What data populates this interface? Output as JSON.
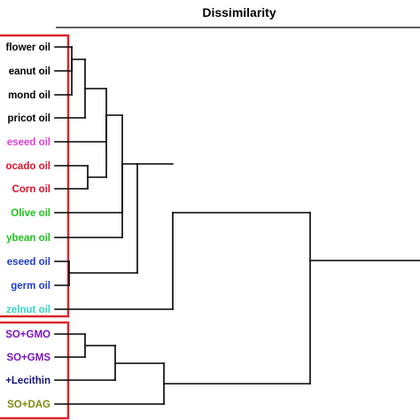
{
  "title": "Dissimilarity",
  "colors": {
    "box": "#d9262c",
    "branch": "#000000"
  },
  "leaves": [
    {
      "label": "flower oil",
      "color": "#000000"
    },
    {
      "label": "eanut oil",
      "color": "#000000"
    },
    {
      "label": "mond oil",
      "color": "#000000"
    },
    {
      "label": "pricot oil",
      "color": "#000000"
    },
    {
      "label": "eseed oil",
      "color": "#e23fd6"
    },
    {
      "label": "ocado oil",
      "color": "#e0102a"
    },
    {
      "label": "Corn oil",
      "color": "#e0102a"
    },
    {
      "label": "Olive oil",
      "color": "#1fc11f"
    },
    {
      "label": "ybean oil",
      "color": "#1fc11f"
    },
    {
      "label": "eseed oil",
      "color": "#1f3bc9"
    },
    {
      "label": "germ oil",
      "color": "#1f3bc9"
    },
    {
      "label": "zelnut oil",
      "color": "#36d6c6"
    },
    {
      "label": "SO+GMO",
      "color": "#7a14b8"
    },
    {
      "label": "SO+GMS",
      "color": "#7a14b8"
    },
    {
      "label": "+Lecithin",
      "color": "#14137f"
    },
    {
      "label": "SO+DAG",
      "color": "#7e8c10"
    }
  ]
}
